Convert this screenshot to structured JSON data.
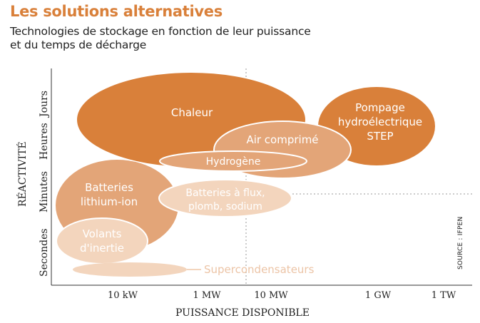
{
  "title": "Les solutions alternatives",
  "subtitle_line1": "Technologies de stockage en fonction de leur puissance",
  "subtitle_line2": "et du temps de décharge",
  "x_axis_label": "PUISSANCE DISPONIBLE",
  "y_axis_label": "RÉACTIVITÉ",
  "x_ticks": [
    "10 kW",
    "1 MW",
    "10 MW",
    "1 GW",
    "1 TW"
  ],
  "y_ticks": [
    "Secondes",
    "Minutes",
    "Heures",
    "Jours"
  ],
  "source": "SOURCE : IFPEN",
  "technologies": {
    "chaleur": "Chaleur",
    "air": "Air comprimé",
    "hydrogene": "Hydrogène",
    "pompage_l1": "Pompage",
    "pompage_l2": "hydroélectrique",
    "pompage_l3": "STEP",
    "batteries_li_l1": "Batteries",
    "batteries_li_l2": "lithium-ion",
    "batteries_flux_l1": "Batteries à flux,",
    "batteries_flux_l2": "plomb, sodium",
    "volants_l1": "Volants",
    "volants_l2": "d'inertie",
    "supercond": "Supercondensateurs"
  },
  "colors": {
    "title": "#d9803a",
    "dark_orange": "#d9803a",
    "medium_orange": "#e3a578",
    "light_orange": "#f3d5bd",
    "axis": "#333333"
  }
}
